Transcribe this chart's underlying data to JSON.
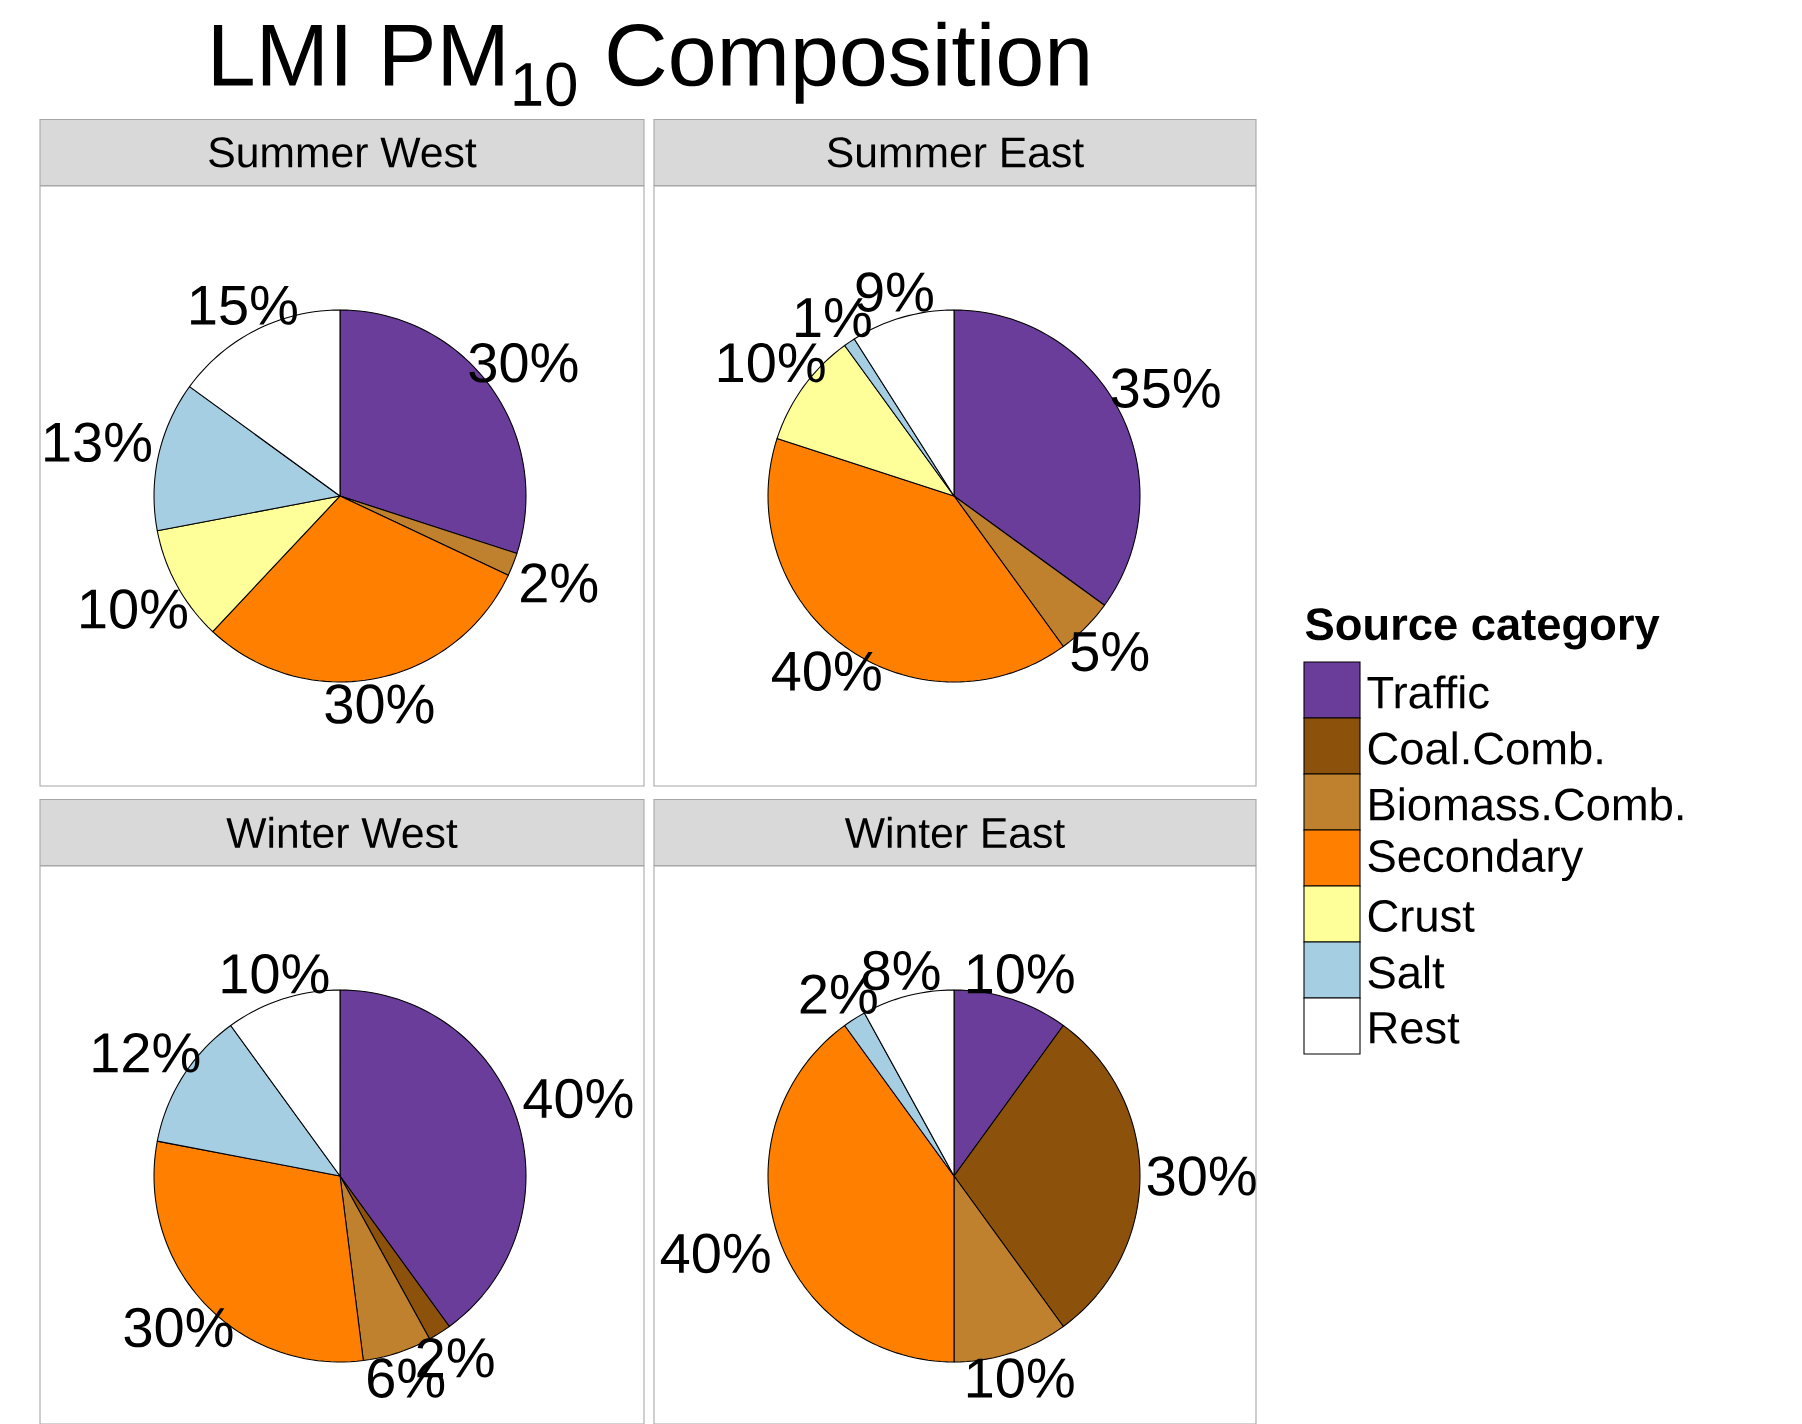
{
  "chart_data": [
    {
      "type": "pie",
      "title": "LMI PM$_{10}$ Composition",
      "subtitle": "Summer West",
      "legend": "right",
      "legend_title": "Source category",
      "categories": [
        "Traffic",
        "Coal.Comb.",
        "Biomass.Comb.",
        "Secondary",
        "Crust",
        "Salt",
        "Rest"
      ],
      "values": [
        30,
        0,
        2,
        30,
        10,
        13,
        15
      ],
      "value_labels": [
        "30%",
        null,
        "2%",
        "30%",
        "10%",
        "13%",
        "15%"
      ],
      "colors": [
        "#6a3d9a",
        "#8c510a",
        "#bf812d",
        "#ff7f00",
        "#ffff99",
        "#a6cee3",
        "#ffffff"
      ]
    },
    {
      "type": "pie",
      "subtitle": "Summer East",
      "values": [
        35,
        0,
        5,
        40,
        10,
        1,
        9
      ],
      "value_labels": [
        "35%",
        null,
        "5%",
        "40%",
        "10%",
        "1%",
        "9%"
      ],
      "colors": [
        "#6a3d9a",
        "#8c510a",
        "#bf812d",
        "#ff7f00",
        "#ffff99",
        "#a6cee3",
        "#ffffff"
      ]
    },
    {
      "type": "pie",
      "subtitle": "Winter West",
      "values": [
        40,
        2,
        6,
        30,
        0,
        12,
        10
      ],
      "value_labels": [
        "40%",
        "2%",
        "6%",
        "30%",
        null,
        "12%",
        "10%"
      ],
      "colors": [
        "#6a3d9a",
        "#8c510a",
        "#bf812d",
        "#ff7f00",
        "#ffff99",
        "#a6cee3",
        "#ffffff"
      ]
    },
    {
      "type": "pie",
      "subtitle": "Winter East",
      "values": [
        10,
        30,
        10,
        40,
        0,
        2,
        8
      ],
      "value_labels": [
        "10%",
        "30%",
        "10%",
        "40%",
        null,
        "2%",
        "8%"
      ],
      "colors": [
        "#6a3d9a",
        "#8c510a",
        "#bf812d",
        "#ff7f00",
        "#ffff99",
        "#a6cee3",
        "#ffffff"
      ]
    }
  ]
}
